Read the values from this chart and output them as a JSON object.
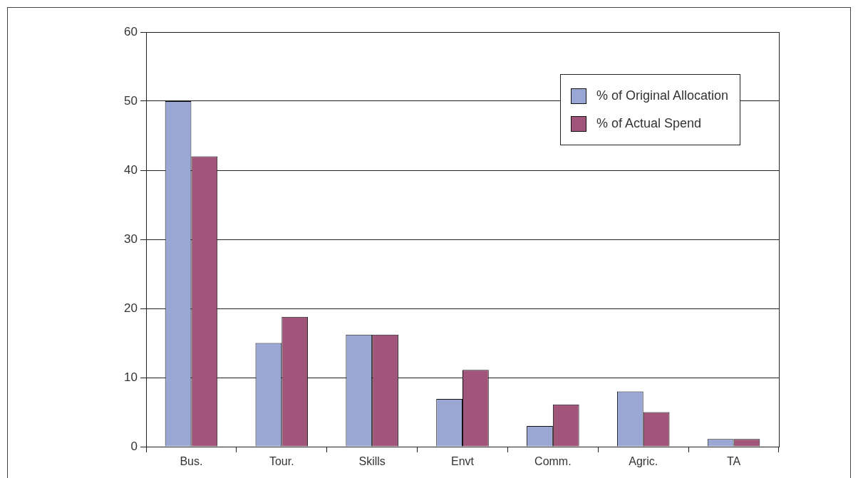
{
  "chart_data": {
    "type": "bar",
    "categories": [
      "Bus.",
      "Tour.",
      "Skills",
      "Envt",
      "Comm.",
      "Agric.",
      "TA"
    ],
    "series": [
      {
        "name": "% of Original Allocation",
        "color": "#9aa6d4",
        "values": [
          50,
          15,
          16.2,
          6.9,
          3,
          8,
          1.1
        ]
      },
      {
        "name": "% of Actual Spend",
        "color": "#a2557a",
        "values": [
          42,
          18.8,
          16.2,
          11.1,
          6.1,
          5,
          1.1
        ]
      }
    ],
    "ylim": [
      0,
      60
    ],
    "yticks": [
      0,
      10,
      20,
      30,
      40,
      50,
      60
    ],
    "grid": "y",
    "legend": "top right"
  }
}
